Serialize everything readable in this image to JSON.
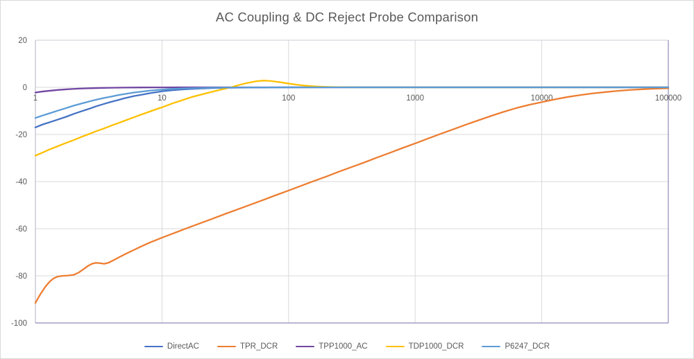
{
  "chart_data": {
    "type": "line",
    "title": "AC Coupling & DC Reject Probe Comparison",
    "xlabel": "",
    "ylabel": "",
    "x_scale": "log",
    "xlim": [
      1,
      100000
    ],
    "ylim": [
      -100,
      20
    ],
    "grid": true,
    "legend_position": "bottom",
    "x_ticks": [
      1,
      10,
      100,
      1000,
      10000,
      100000
    ],
    "x_tick_labels": [
      "1",
      "10",
      "100",
      "1000",
      "10000",
      "100000"
    ],
    "y_ticks": [
      20,
      0,
      -20,
      -40,
      -60,
      -80,
      -100
    ],
    "y_tick_labels": [
      "20",
      "0",
      "-20",
      "-40",
      "-60",
      "-80",
      "-100"
    ],
    "palette": {
      "text": "#595959",
      "grid": "#D9D9D9",
      "border_top": "#CBCAD6",
      "border_left": "#B3B0C6",
      "border_bottom": "#8F8BB9",
      "border_right": "#8F8BB9",
      "outer_border": "#D9D9D9",
      "background": "#FFFFFF"
    },
    "series": [
      {
        "name": "DirectAC",
        "color": "#4472C4",
        "points": [
          [
            1,
            -17
          ],
          [
            1.15,
            -15.7
          ],
          [
            1.3,
            -14.8
          ],
          [
            1.5,
            -13.7
          ],
          [
            1.75,
            -12.5
          ],
          [
            2,
            -11.3
          ],
          [
            2.3,
            -10.2
          ],
          [
            2.7,
            -9
          ],
          [
            3,
            -8.1
          ],
          [
            3.5,
            -7
          ],
          [
            4,
            -6.1
          ],
          [
            4.5,
            -5.4
          ],
          [
            5,
            -4.7
          ],
          [
            6,
            -3.7
          ],
          [
            7,
            -3.1
          ],
          [
            8,
            -2.5
          ],
          [
            10,
            -1.7
          ],
          [
            12,
            -1.25
          ],
          [
            15,
            -0.85
          ],
          [
            20,
            -0.5
          ],
          [
            25,
            -0.33
          ],
          [
            30,
            -0.23
          ],
          [
            40,
            -0.13
          ],
          [
            50,
            -0.08
          ],
          [
            70,
            -0.04
          ],
          [
            100,
            -0.02
          ],
          [
            200,
            0
          ],
          [
            100000,
            0
          ]
        ]
      },
      {
        "name": "TPR_DCR",
        "color": "#ED7D31",
        "points": [
          [
            1,
            -91.5
          ],
          [
            1.05,
            -89.5
          ],
          [
            1.1,
            -87.6
          ],
          [
            1.2,
            -84.6
          ],
          [
            1.3,
            -82.4
          ],
          [
            1.4,
            -81
          ],
          [
            1.5,
            -80.3
          ],
          [
            1.65,
            -80
          ],
          [
            1.8,
            -79.9
          ],
          [
            2,
            -79.6
          ],
          [
            2.2,
            -78.6
          ],
          [
            2.4,
            -77.2
          ],
          [
            2.6,
            -75.8
          ],
          [
            2.8,
            -74.9
          ],
          [
            3,
            -74.5
          ],
          [
            3.2,
            -74.6
          ],
          [
            3.5,
            -74.9
          ],
          [
            3.8,
            -74.4
          ],
          [
            4.2,
            -73.2
          ],
          [
            4.7,
            -71.8
          ],
          [
            5.2,
            -70.6
          ],
          [
            6,
            -69
          ],
          [
            7,
            -67.3
          ],
          [
            8,
            -65.9
          ],
          [
            9,
            -64.8
          ],
          [
            10,
            -63.8
          ],
          [
            12,
            -62.2
          ],
          [
            15,
            -60.2
          ],
          [
            20,
            -57.7
          ],
          [
            25,
            -55.8
          ],
          [
            32,
            -53.6
          ],
          [
            40,
            -51.7
          ],
          [
            50,
            -49.8
          ],
          [
            63,
            -47.8
          ],
          [
            80,
            -45.7
          ],
          [
            100,
            -43.8
          ],
          [
            130,
            -41.5
          ],
          [
            160,
            -39.7
          ],
          [
            200,
            -37.8
          ],
          [
            250,
            -35.8
          ],
          [
            320,
            -33.7
          ],
          [
            400,
            -31.8
          ],
          [
            500,
            -29.8
          ],
          [
            630,
            -27.8
          ],
          [
            800,
            -25.7
          ],
          [
            1000,
            -23.8
          ],
          [
            1300,
            -21.5
          ],
          [
            1600,
            -19.7
          ],
          [
            2000,
            -17.8
          ],
          [
            2500,
            -15.9
          ],
          [
            3200,
            -13.9
          ],
          [
            4000,
            -12.1
          ],
          [
            5000,
            -10.4
          ],
          [
            6300,
            -8.8
          ],
          [
            8000,
            -7.4
          ],
          [
            10000,
            -6.3
          ],
          [
            13000,
            -5
          ],
          [
            16000,
            -4.1
          ],
          [
            20000,
            -3.3
          ],
          [
            25000,
            -2.6
          ],
          [
            32000,
            -2
          ],
          [
            40000,
            -1.5
          ],
          [
            50000,
            -1.1
          ],
          [
            63000,
            -0.8
          ],
          [
            80000,
            -0.55
          ],
          [
            100000,
            -0.4
          ]
        ]
      },
      {
        "name": "TPP1000_AC",
        "color": "#7145A1",
        "points": [
          [
            1,
            -2.2
          ],
          [
            1.15,
            -1.75
          ],
          [
            1.3,
            -1.45
          ],
          [
            1.5,
            -1.12
          ],
          [
            1.7,
            -0.9
          ],
          [
            2,
            -0.66
          ],
          [
            2.3,
            -0.51
          ],
          [
            2.7,
            -0.38
          ],
          [
            3.2,
            -0.27
          ],
          [
            4,
            -0.18
          ],
          [
            5,
            -0.11
          ],
          [
            7,
            -0.06
          ],
          [
            10,
            -0.03
          ],
          [
            15,
            -0.01
          ],
          [
            25,
            0
          ],
          [
            100000,
            0
          ]
        ]
      },
      {
        "name": "TDP1000_DCR",
        "color": "#FFC000",
        "points": [
          [
            1,
            -29
          ],
          [
            1.15,
            -27.6
          ],
          [
            1.3,
            -26.3
          ],
          [
            1.5,
            -25
          ],
          [
            1.75,
            -23.6
          ],
          [
            2,
            -22.4
          ],
          [
            2.3,
            -21.1
          ],
          [
            2.6,
            -20
          ],
          [
            3,
            -18.7
          ],
          [
            3.5,
            -17.4
          ],
          [
            4,
            -16.2
          ],
          [
            4.5,
            -15.2
          ],
          [
            5,
            -14.3
          ],
          [
            6,
            -12.7
          ],
          [
            7,
            -11.4
          ],
          [
            8,
            -10.3
          ],
          [
            9,
            -9.3
          ],
          [
            10,
            -8.5
          ],
          [
            12,
            -6.9
          ],
          [
            14,
            -5.7
          ],
          [
            17,
            -4.2
          ],
          [
            20,
            -3.2
          ],
          [
            24,
            -2.1
          ],
          [
            28,
            -1.2
          ],
          [
            32,
            -0.5
          ],
          [
            36,
            0.2
          ],
          [
            40,
            0.9
          ],
          [
            45,
            1.6
          ],
          [
            50,
            2.1
          ],
          [
            56,
            2.6
          ],
          [
            63,
            2.85
          ],
          [
            70,
            2.75
          ],
          [
            80,
            2.4
          ],
          [
            90,
            2
          ],
          [
            100,
            1.6
          ],
          [
            115,
            1.15
          ],
          [
            130,
            0.8
          ],
          [
            150,
            0.5
          ],
          [
            175,
            0.3
          ],
          [
            200,
            0.18
          ],
          [
            250,
            0.07
          ],
          [
            320,
            0.02
          ],
          [
            400,
            0
          ],
          [
            100000,
            0
          ]
        ]
      },
      {
        "name": "P6247_DCR",
        "color": "#5B9BD5",
        "points": [
          [
            1,
            -13
          ],
          [
            1.15,
            -11.9
          ],
          [
            1.3,
            -11
          ],
          [
            1.5,
            -9.9
          ],
          [
            1.75,
            -8.8
          ],
          [
            2,
            -7.8
          ],
          [
            2.3,
            -6.9
          ],
          [
            2.7,
            -5.9
          ],
          [
            3,
            -5.3
          ],
          [
            3.5,
            -4.5
          ],
          [
            4,
            -3.9
          ],
          [
            4.5,
            -3.3
          ],
          [
            5,
            -2.9
          ],
          [
            6,
            -2.2
          ],
          [
            7,
            -1.8
          ],
          [
            8,
            -1.4
          ],
          [
            10,
            -0.95
          ],
          [
            12,
            -0.68
          ],
          [
            15,
            -0.45
          ],
          [
            20,
            -0.26
          ],
          [
            25,
            -0.17
          ],
          [
            30,
            -0.12
          ],
          [
            40,
            -0.07
          ],
          [
            50,
            -0.04
          ],
          [
            100,
            -0.01
          ],
          [
            200,
            0
          ],
          [
            100000,
            0
          ]
        ]
      }
    ]
  }
}
